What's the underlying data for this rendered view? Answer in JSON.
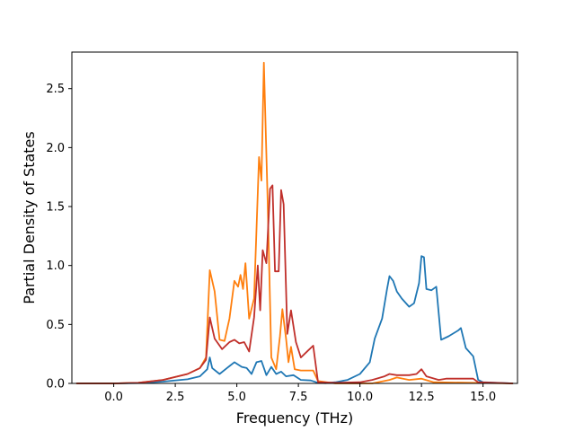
{
  "chart_data": {
    "type": "line",
    "title": "",
    "xlabel": "Frequency (THz)",
    "ylabel": "Partial Density of States",
    "xlim": [
      -1.7,
      16.4
    ],
    "ylim": [
      0,
      2.81
    ],
    "xticks": [
      0.0,
      2.5,
      5.0,
      7.5,
      10.0,
      12.5,
      15.0
    ],
    "yticks": [
      0.0,
      0.5,
      1.0,
      1.5,
      2.0,
      2.5
    ],
    "xtick_labels": [
      "0.0",
      "2.5",
      "5.0",
      "7.5",
      "10.0",
      "12.5",
      "15.0"
    ],
    "ytick_labels": [
      "0.0",
      "0.5",
      "1.0",
      "1.5",
      "2.0",
      "2.5"
    ],
    "grid": false,
    "legend": "none",
    "series": [
      {
        "color": "#1f77b4",
        "points": [
          [
            -1.5,
            0
          ],
          [
            0,
            0
          ],
          [
            1,
            0.003
          ],
          [
            2,
            0.015
          ],
          [
            3,
            0.035
          ],
          [
            3.5,
            0.06
          ],
          [
            3.8,
            0.12
          ],
          [
            3.9,
            0.22
          ],
          [
            4.0,
            0.13
          ],
          [
            4.3,
            0.08
          ],
          [
            4.6,
            0.13
          ],
          [
            4.9,
            0.18
          ],
          [
            5.2,
            0.14
          ],
          [
            5.4,
            0.13
          ],
          [
            5.6,
            0.08
          ],
          [
            5.8,
            0.18
          ],
          [
            6.0,
            0.19
          ],
          [
            6.2,
            0.07
          ],
          [
            6.4,
            0.14
          ],
          [
            6.6,
            0.08
          ],
          [
            6.8,
            0.1
          ],
          [
            7.0,
            0.06
          ],
          [
            7.3,
            0.07
          ],
          [
            7.6,
            0.03
          ],
          [
            8.0,
            0.025
          ],
          [
            8.3,
            0.005
          ],
          [
            8.6,
            0.002
          ],
          [
            9.0,
            0.01
          ],
          [
            9.5,
            0.03
          ],
          [
            10.0,
            0.08
          ],
          [
            10.4,
            0.18
          ],
          [
            10.6,
            0.38
          ],
          [
            10.9,
            0.55
          ],
          [
            11.1,
            0.8
          ],
          [
            11.2,
            0.91
          ],
          [
            11.35,
            0.87
          ],
          [
            11.5,
            0.78
          ],
          [
            11.7,
            0.72
          ],
          [
            12.0,
            0.65
          ],
          [
            12.2,
            0.68
          ],
          [
            12.4,
            0.85
          ],
          [
            12.5,
            1.08
          ],
          [
            12.6,
            1.07
          ],
          [
            12.7,
            0.8
          ],
          [
            12.9,
            0.79
          ],
          [
            13.1,
            0.82
          ],
          [
            13.3,
            0.37
          ],
          [
            13.6,
            0.4
          ],
          [
            14.0,
            0.45
          ],
          [
            14.1,
            0.47
          ],
          [
            14.3,
            0.3
          ],
          [
            14.6,
            0.23
          ],
          [
            14.8,
            0.03
          ],
          [
            15.0,
            0.01
          ],
          [
            16.2,
            0
          ]
        ]
      },
      {
        "color": "#ff7f0e",
        "points": [
          [
            -1.5,
            0
          ],
          [
            0,
            0
          ],
          [
            1,
            0.005
          ],
          [
            2,
            0.03
          ],
          [
            3,
            0.08
          ],
          [
            3.5,
            0.13
          ],
          [
            3.75,
            0.22
          ],
          [
            3.9,
            0.96
          ],
          [
            4.1,
            0.78
          ],
          [
            4.3,
            0.37
          ],
          [
            4.5,
            0.36
          ],
          [
            4.7,
            0.55
          ],
          [
            4.9,
            0.87
          ],
          [
            5.05,
            0.82
          ],
          [
            5.15,
            0.92
          ],
          [
            5.25,
            0.8
          ],
          [
            5.35,
            1.02
          ],
          [
            5.5,
            0.55
          ],
          [
            5.7,
            0.72
          ],
          [
            5.9,
            1.92
          ],
          [
            6.0,
            1.72
          ],
          [
            6.1,
            2.72
          ],
          [
            6.25,
            1.55
          ],
          [
            6.4,
            0.22
          ],
          [
            6.6,
            0.12
          ],
          [
            6.75,
            0.4
          ],
          [
            6.85,
            0.63
          ],
          [
            7.0,
            0.38
          ],
          [
            7.1,
            0.18
          ],
          [
            7.2,
            0.31
          ],
          [
            7.35,
            0.12
          ],
          [
            7.6,
            0.11
          ],
          [
            8.1,
            0.11
          ],
          [
            8.3,
            0.02
          ],
          [
            9.0,
            0
          ],
          [
            10.5,
            0
          ],
          [
            11.2,
            0.03
          ],
          [
            11.5,
            0.05
          ],
          [
            12.0,
            0.03
          ],
          [
            12.5,
            0.04
          ],
          [
            13.0,
            0.01
          ],
          [
            16.2,
            0
          ]
        ]
      },
      {
        "color": "#c0302b",
        "points": [
          [
            -1.5,
            0
          ],
          [
            0,
            0
          ],
          [
            1,
            0.005
          ],
          [
            2,
            0.03
          ],
          [
            3,
            0.08
          ],
          [
            3.5,
            0.13
          ],
          [
            3.75,
            0.2
          ],
          [
            3.9,
            0.56
          ],
          [
            4.1,
            0.38
          ],
          [
            4.4,
            0.29
          ],
          [
            4.7,
            0.35
          ],
          [
            4.9,
            0.37
          ],
          [
            5.1,
            0.34
          ],
          [
            5.3,
            0.35
          ],
          [
            5.5,
            0.27
          ],
          [
            5.7,
            0.56
          ],
          [
            5.85,
            1.0
          ],
          [
            5.95,
            0.62
          ],
          [
            6.05,
            1.13
          ],
          [
            6.2,
            1.02
          ],
          [
            6.35,
            1.65
          ],
          [
            6.45,
            1.68
          ],
          [
            6.55,
            0.95
          ],
          [
            6.7,
            0.95
          ],
          [
            6.8,
            1.64
          ],
          [
            6.9,
            1.52
          ],
          [
            7.05,
            0.42
          ],
          [
            7.2,
            0.62
          ],
          [
            7.4,
            0.35
          ],
          [
            7.6,
            0.22
          ],
          [
            7.9,
            0.28
          ],
          [
            8.1,
            0.32
          ],
          [
            8.3,
            0.01
          ],
          [
            9.0,
            0.005
          ],
          [
            10.0,
            0.01
          ],
          [
            10.5,
            0.03
          ],
          [
            11.0,
            0.06
          ],
          [
            11.2,
            0.08
          ],
          [
            11.5,
            0.07
          ],
          [
            12.0,
            0.07
          ],
          [
            12.3,
            0.08
          ],
          [
            12.5,
            0.12
          ],
          [
            12.7,
            0.06
          ],
          [
            13.2,
            0.03
          ],
          [
            13.5,
            0.04
          ],
          [
            14.0,
            0.04
          ],
          [
            14.6,
            0.04
          ],
          [
            14.8,
            0.01
          ],
          [
            16.2,
            0
          ]
        ]
      }
    ]
  }
}
